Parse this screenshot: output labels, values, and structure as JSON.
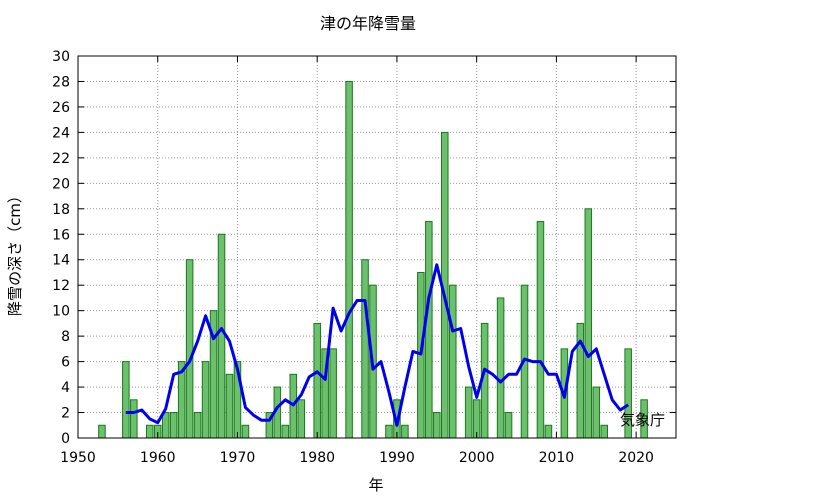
{
  "chart_data": {
    "type": "bar",
    "title": "津の年降雪量",
    "xlabel": "年",
    "ylabel": "降雪の深さ（cm）",
    "credit": "気象庁",
    "xlim": [
      1950,
      2025
    ],
    "ylim": [
      0,
      30
    ],
    "x_ticks": [
      1950,
      1960,
      1970,
      1980,
      1990,
      2000,
      2010,
      2020
    ],
    "y_ticks": [
      0,
      2,
      4,
      6,
      8,
      10,
      12,
      14,
      16,
      18,
      20,
      22,
      24,
      26,
      28,
      30
    ],
    "grid": true,
    "bar_color": "#6cbf6c",
    "bar_edge_color": "#1a7a1a",
    "line_color": "#0000ee",
    "series": [
      {
        "kind": "bar",
        "x": [
          1953,
          1954,
          1955,
          1956,
          1957,
          1958,
          1959,
          1960,
          1961,
          1962,
          1963,
          1964,
          1965,
          1966,
          1967,
          1968,
          1969,
          1970,
          1971,
          1972,
          1973,
          1974,
          1975,
          1976,
          1977,
          1978,
          1979,
          1980,
          1981,
          1982,
          1983,
          1984,
          1985,
          1986,
          1987,
          1988,
          1989,
          1990,
          1991,
          1992,
          1993,
          1994,
          1995,
          1996,
          1997,
          1998,
          1999,
          2000,
          2001,
          2002,
          2003,
          2004,
          2005,
          2006,
          2007,
          2008,
          2009,
          2010,
          2011,
          2012,
          2013,
          2014,
          2015,
          2016,
          2017,
          2018,
          2019,
          2020,
          2021
        ],
        "values": [
          1,
          0,
          0,
          6,
          3,
          0,
          1,
          1,
          2,
          2,
          6,
          14,
          2,
          6,
          10,
          16,
          5,
          6,
          1,
          0,
          0,
          2,
          4,
          1,
          5,
          3,
          0,
          9,
          7,
          7,
          0,
          28,
          0,
          14,
          12,
          0,
          1,
          3,
          1,
          0,
          13,
          17,
          2,
          24,
          12,
          0,
          4,
          3,
          9,
          0,
          11,
          2,
          0,
          12,
          0,
          17,
          1,
          0,
          7,
          0,
          9,
          18,
          4,
          1,
          0,
          0,
          7,
          0,
          3
        ]
      },
      {
        "kind": "line",
        "x": [
          1956,
          1957,
          1958,
          1959,
          1960,
          1961,
          1962,
          1963,
          1964,
          1965,
          1966,
          1967,
          1968,
          1969,
          1970,
          1971,
          1972,
          1973,
          1974,
          1975,
          1976,
          1977,
          1978,
          1979,
          1980,
          1981,
          1982,
          1983,
          1984,
          1985,
          1986,
          1987,
          1988,
          1989,
          1990,
          1991,
          1992,
          1993,
          1994,
          1995,
          1996,
          1997,
          1998,
          1999,
          2000,
          2001,
          2002,
          2003,
          2004,
          2005,
          2006,
          2007,
          2008,
          2009,
          2010,
          2011,
          2012,
          2013,
          2014,
          2015,
          2016,
          2017,
          2018,
          2019
        ],
        "values": [
          2,
          2,
          2.2,
          1.5,
          1.2,
          2.3,
          5,
          5.2,
          6,
          7.6,
          9.6,
          7.8,
          8.6,
          7.6,
          5.4,
          2.4,
          1.8,
          1.4,
          1.4,
          2.4,
          3,
          2.6,
          3.4,
          4.8,
          5.2,
          4.6,
          10.2,
          8.4,
          9.8,
          10.8,
          10.8,
          5.4,
          6,
          3.6,
          1,
          4,
          6.8,
          6.6,
          11,
          13.6,
          11,
          8.4,
          8.6,
          5.6,
          3.2,
          5.4,
          5,
          4.4,
          5,
          5,
          6.2,
          6,
          6,
          5,
          5,
          3.2,
          6.8,
          7.6,
          6.4,
          7,
          5,
          3,
          2.2,
          2.6
        ]
      }
    ]
  }
}
